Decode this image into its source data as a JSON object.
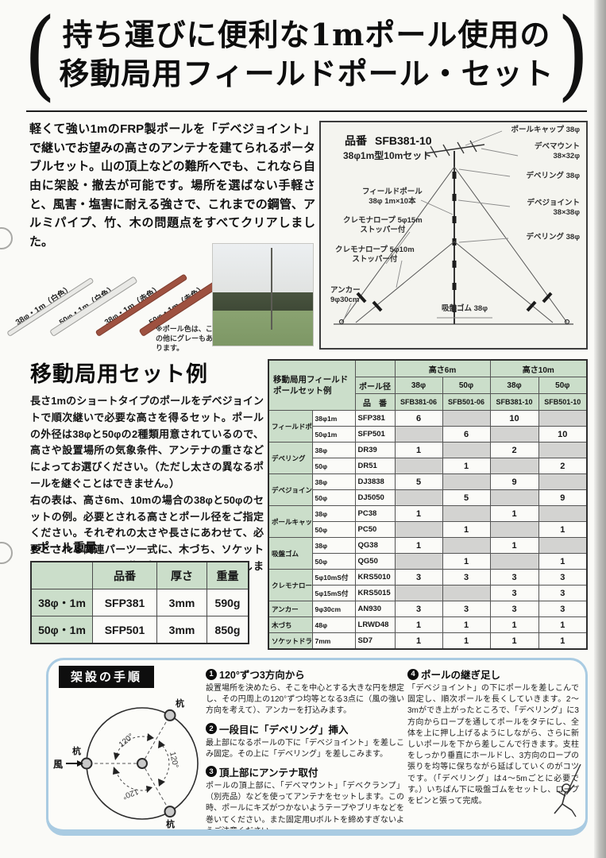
{
  "header": {
    "title_line1": "持ち運びに便利な1mポール使用の",
    "title_line2": "移動局用フィールドポール・セット"
  },
  "intro": {
    "text": "軽くて強い1mのFRP製ポールを「デベジョイント」で継いでお望みの高さのアンテナを建てられるポータブルセット。山の頂上などの難所へでも、これなら自由に架設・撤去が可能です。場所を選ばない手軽さと、風害・塩害に耐える強さで、これまでの鋼管、アルミパイプ、竹、木の問題点をすべてクリアしました。"
  },
  "poles": {
    "labels": [
      "38φ・1m（白色）",
      "50φ・1m（白色）",
      "38φ・1m（赤色）",
      "50φ・1m（赤色）"
    ],
    "note": "※ポール色は、この他にグレーもあります。"
  },
  "diagram": {
    "part_no_label": "品番",
    "part_no": "SFB381-10",
    "subtitle": "38φ1m型10mセット",
    "labels_right": [
      {
        "l1": "ポールキャップ 38φ",
        "l2": ""
      },
      {
        "l1": "デベマウント",
        "l2": "38×32φ"
      },
      {
        "l1": "デベリング 38φ",
        "l2": ""
      },
      {
        "l1": "デベジョイント",
        "l2": "38×38φ"
      },
      {
        "l1": "デベリング 38φ",
        "l2": ""
      }
    ],
    "labels_left": [
      {
        "l1": "フィールドポール",
        "l2": "38φ 1m×10本"
      },
      {
        "l1": "クレモナロープ 5φ15m",
        "l2": "ストッパー付"
      },
      {
        "l1": "クレモナロープ 5φ10m",
        "l2": "ストッパー付"
      },
      {
        "l1": "アンカー",
        "l2": "9φ30cm"
      }
    ],
    "label_bottom": "吸盤ゴム 38φ"
  },
  "set_example": {
    "heading": "移動局用セット例",
    "body1": "長さ1mのショートタイプのポールをデベジョイントで順次継いで必要な高さを得るセット。ポールの外径は38φと50φの2種類用意されているので、高さや設置場所の気象条件、アンテナの重さなどによってお選びください。（ただし太さの異なるポールを継ぐことはできません。）",
    "body2": "右の表は、高さ6m、10mの場合の38φと50φのセットの例。必要とされる高さとポール径をご指定ください。それぞれの太さや長さにあわせて、必要とされる関連パーツ一式に、木づち、ソケットドライバーといった道具類もそろえてお届けします。"
  },
  "weight": {
    "heading": "●ポール重量",
    "headers": [
      "",
      "品番",
      "厚さ",
      "重量"
    ],
    "rows": [
      [
        "38φ・1m",
        "SFP381",
        "3mm",
        "590g"
      ],
      [
        "50φ・1m",
        "SFP501",
        "3mm",
        "850g"
      ]
    ]
  },
  "main_table": {
    "title": "移動局用フィールド\nポールセット例",
    "height_groups": [
      "高さ6m",
      "高さ10m"
    ],
    "pole_dia_label": "ポール径",
    "code_label": "品　番",
    "dias": [
      "38φ",
      "50φ",
      "38φ",
      "50φ"
    ],
    "codes": [
      "SFB381-06",
      "SFB501-06",
      "SFB381-10",
      "SFB501-10"
    ],
    "rows": [
      {
        "category": "フィールドポール",
        "span": 2,
        "size": "38φ1m",
        "code": "SFP381",
        "v": [
          "6",
          "",
          "10",
          ""
        ]
      },
      {
        "size": "50φ1m",
        "code": "SFP501",
        "v": [
          "",
          "6",
          "",
          "10"
        ]
      },
      {
        "category": "デベリング",
        "span": 2,
        "size": "38φ",
        "code": "DR39",
        "v": [
          "1",
          "",
          "2",
          ""
        ]
      },
      {
        "size": "50φ",
        "code": "DR51",
        "v": [
          "",
          "1",
          "",
          "2"
        ]
      },
      {
        "category": "デベジョイント",
        "span": 2,
        "size": "38φ",
        "code": "DJ3838",
        "v": [
          "5",
          "",
          "9",
          ""
        ]
      },
      {
        "size": "50φ",
        "code": "DJ5050",
        "v": [
          "",
          "5",
          "",
          "9"
        ]
      },
      {
        "category": "ポールキャップ",
        "span": 2,
        "size": "38φ",
        "code": "PC38",
        "v": [
          "1",
          "",
          "1",
          ""
        ]
      },
      {
        "size": "50φ",
        "code": "PC50",
        "v": [
          "",
          "1",
          "",
          "1"
        ]
      },
      {
        "category": "吸盤ゴム",
        "span": 2,
        "size": "38φ",
        "code": "QG38",
        "v": [
          "1",
          "",
          "1",
          ""
        ]
      },
      {
        "size": "50φ",
        "code": "QG50",
        "v": [
          "",
          "1",
          "",
          "1"
        ]
      },
      {
        "category": "クレモナロープ",
        "span": 2,
        "size": "5φ10mS付",
        "code": "KRS5010",
        "v": [
          "3",
          "3",
          "3",
          "3"
        ]
      },
      {
        "size": "5φ15mS付",
        "code": "KRS5015",
        "v": [
          "",
          "",
          "3",
          "3"
        ]
      },
      {
        "category": "アンカー",
        "span": 1,
        "size": "9φ30cm",
        "code": "AN930",
        "v": [
          "3",
          "3",
          "3",
          "3"
        ]
      },
      {
        "category": "木づち",
        "span": 1,
        "size": "48φ",
        "code": "LRWD48",
        "v": [
          "1",
          "1",
          "1",
          "1"
        ]
      },
      {
        "category": "ソケットドライバー",
        "span": 1,
        "size": "7mm",
        "code": "SD7",
        "v": [
          "1",
          "1",
          "1",
          "1"
        ]
      }
    ]
  },
  "procedure": {
    "heading": "架設の手順",
    "circle": {
      "wind": "風",
      "stake": "杭",
      "angle": "120°"
    },
    "steps": [
      {
        "num": "1",
        "title": "120°ずつ3方向から",
        "body": "設置場所を決めたら、そこを中心とする大きな円を想定し、その円周上の120°ずつ均等となる3点に（風の強い方向を考えて）、アンカーを打込みます。"
      },
      {
        "num": "2",
        "title": "一段目に「デベリング」挿入",
        "body": "最上部になるポールの下に「デベジョイント」を差しこみ固定。その上に「デベリング」を差しこみます。"
      },
      {
        "num": "3",
        "title": "頂上部にアンテナ取付",
        "body": "ポールの頂上部に、「デベマウント」「デベクランプ」（別売品）などを使ってアンテナをセットします。この時、ポールにキズがつかないようテープやブリキなどを巻いてください。また固定用Uボルトを締めすぎないようご注意ください。"
      },
      {
        "num": "4",
        "title": "ポールの継ぎ足し",
        "body": "「デベジョイント」の下にポールを差しこんで固定し、順次ポールを長くしていきます。2〜3mができ上がったところで、「デベリング」に3方向からロープを通してポールをタテにし、全体を上に押し上げるようにしながら、さらに新しいポールを下から差しこんで行きます。支柱をしっかり垂直にホールドし、3方向のロープの張りを均等に保ちながら延ばしていくのがコツです。（「デベリング」は4〜5mごとに必要です。）いちばん下に吸盤ゴムをセットし、ロープをピンと張って完成。"
      }
    ]
  },
  "colors": {
    "table_green": "#cbdeca",
    "cell_gray": "#d3d3d1",
    "panel_blue": "#a9cbe2",
    "pole_red": "#9e5140"
  }
}
